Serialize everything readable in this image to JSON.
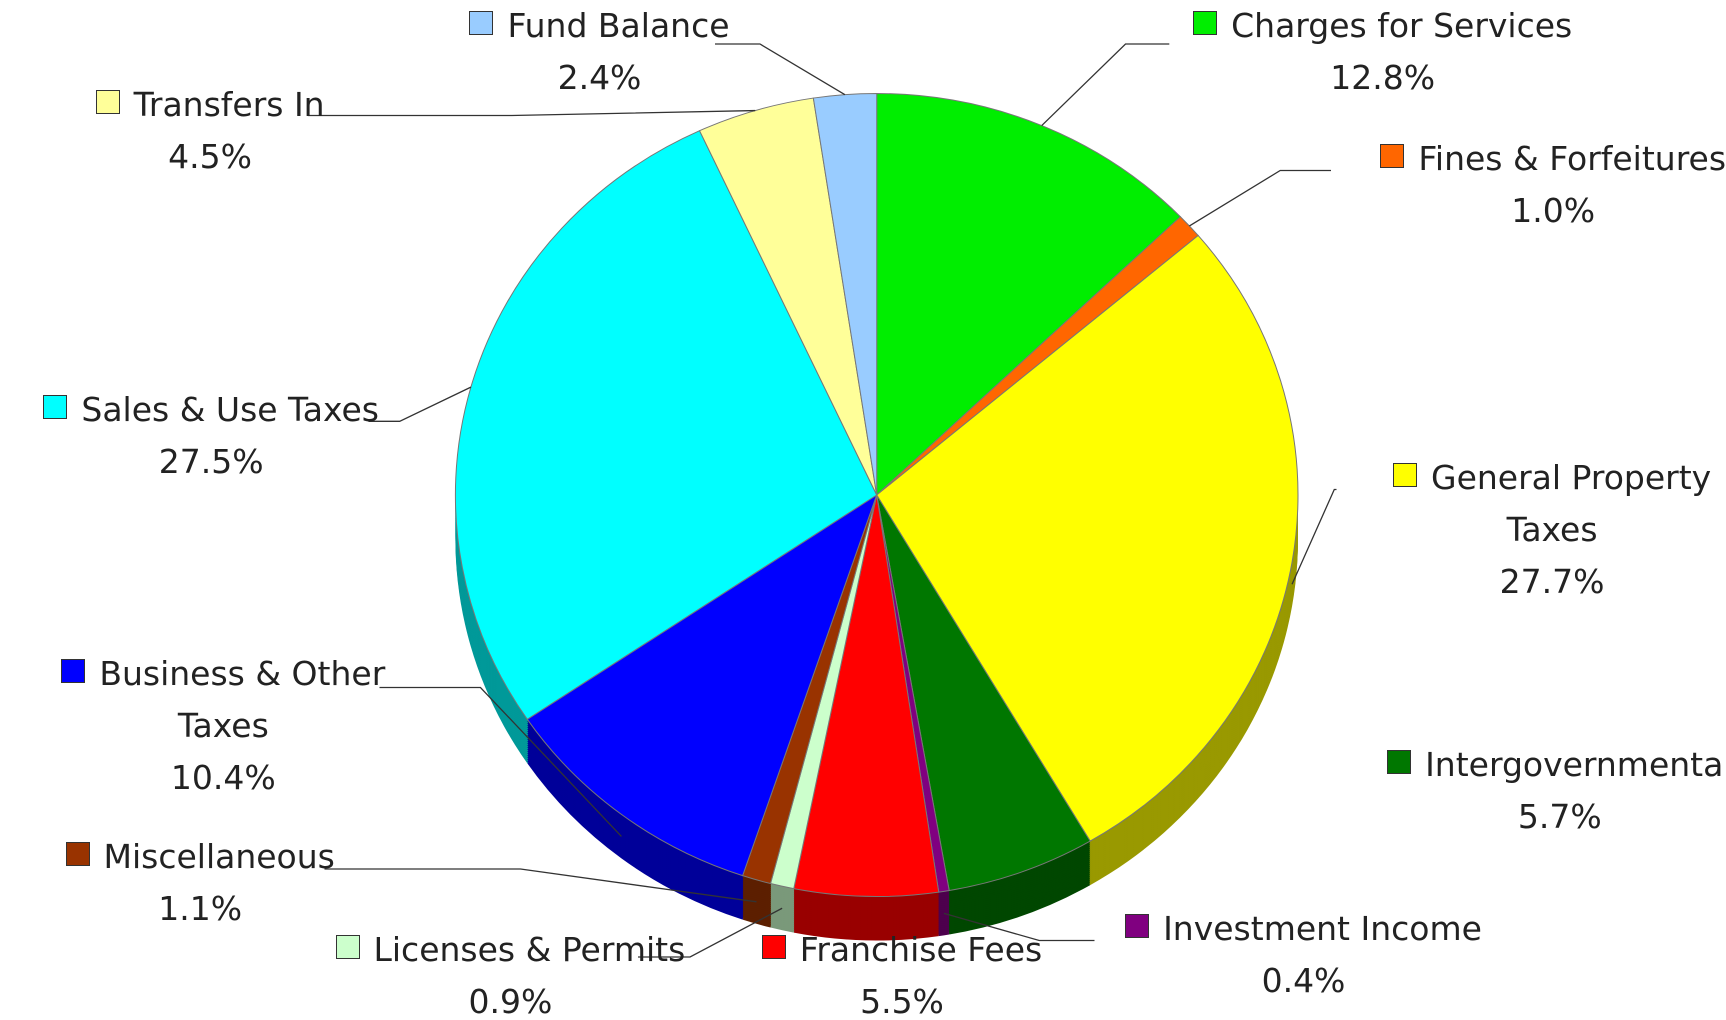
{
  "chart_data": {
    "type": "pie",
    "categories": [
      "Charges for Services",
      "Fines & Forfeitures",
      "General Property Taxes",
      "Intergovernmental",
      "Investment Income",
      "Franchise Fees",
      "Licenses & Permits",
      "Miscellaneous",
      "Business & Other Taxes",
      "Sales & Use Taxes",
      "Transfers In",
      "Fund Balance"
    ],
    "values": [
      12.8,
      1.0,
      27.7,
      5.7,
      0.4,
      5.5,
      0.9,
      1.1,
      10.4,
      27.5,
      4.5,
      2.4
    ],
    "value_labels": [
      "12.8%",
      "1.0%",
      "27.7%",
      "5.7%",
      "0.4%",
      "5.5%",
      "0.9%",
      "1.1%",
      "10.4%",
      "27.5%",
      "4.5%",
      "2.4%"
    ],
    "colors": [
      "#00ee00",
      "#ff6600",
      "#ffff00",
      "#007700",
      "#800080",
      "#ff0000",
      "#ccffcc",
      "#993300",
      "#0000ff",
      "#00ffff",
      "#ffff99",
      "#99ccff"
    ]
  }
}
